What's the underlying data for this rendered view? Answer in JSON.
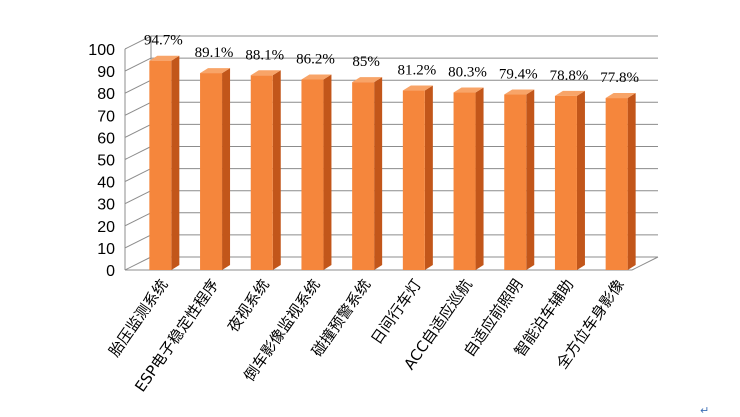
{
  "chart_data": {
    "type": "bar",
    "categories": [
      "胎压监测系统",
      "ESP电子稳定性程序",
      "夜视系统",
      "倒车影像监视系统",
      "碰撞预警系统",
      "日间行车灯",
      "ACC自适应巡航",
      "自适应前照明",
      "智能泊车辅助",
      "全方位车身影像"
    ],
    "values": [
      94.7,
      89.1,
      88.1,
      86.2,
      85,
      81.2,
      80.3,
      79.4,
      78.8,
      77.8
    ],
    "value_labels": [
      "94.7%",
      "89.1%",
      "88.1%",
      "86.2%",
      "85%",
      "81.2%",
      "80.3%",
      "79.4%",
      "78.8%",
      "77.8%"
    ],
    "y_ticks": [
      "0",
      "10",
      "20",
      "30",
      "40",
      "50",
      "60",
      "70",
      "80",
      "90",
      "100"
    ],
    "ylim": [
      0,
      100
    ],
    "grid": true,
    "three_d": true,
    "legend": "none",
    "colors": {
      "bar_front": "#f5863c",
      "bar_side": "#c2561a",
      "bar_top": "#f8a468",
      "grid": "#8c8c8c"
    }
  },
  "corner_mark": "↵"
}
